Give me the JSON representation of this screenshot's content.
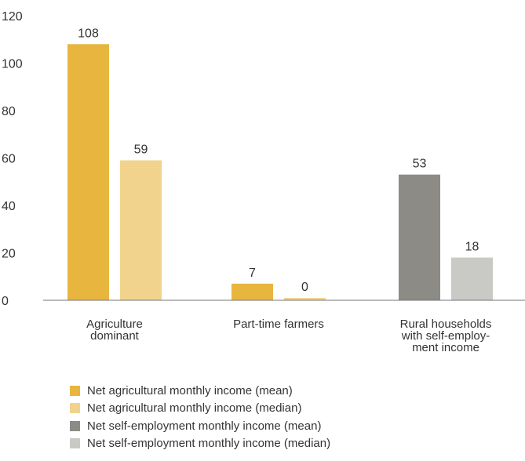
{
  "chart_data": {
    "type": "bar",
    "categories": [
      [
        "Agriculture",
        "dominant"
      ],
      [
        "Part-time farmers"
      ],
      [
        "Rural households",
        "with self-employ-",
        "ment income"
      ]
    ],
    "series": [
      {
        "name": "Net agricultural monthly income (mean)",
        "color": "#E8B53E",
        "values": [
          108,
          7,
          null
        ]
      },
      {
        "name": "Net agricultural monthly income (median)",
        "color": "#F2D38D",
        "values": [
          59,
          0,
          null
        ]
      },
      {
        "name": "Net self-employment monthly income (mean)",
        "color": "#8C8B86",
        "values": [
          null,
          null,
          53
        ]
      },
      {
        "name": "Net self-employment monthly income (median)",
        "color": "#C9C9C5",
        "values": [
          null,
          null,
          18
        ]
      }
    ],
    "ylim": [
      0,
      120
    ],
    "yticks": [
      0,
      20,
      40,
      60,
      80,
      100,
      120
    ],
    "grid": false,
    "legend_position": "bottom"
  }
}
